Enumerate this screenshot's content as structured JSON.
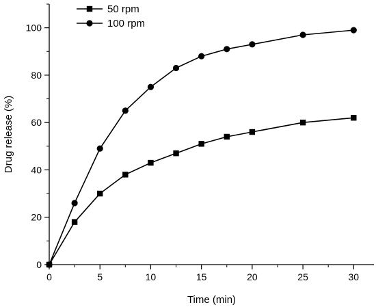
{
  "chart_data": {
    "type": "line",
    "xlabel": "Time (min)",
    "ylabel": "Drug release (%)",
    "xlim": [
      0,
      32
    ],
    "ylim": [
      0,
      110
    ],
    "xticks": [
      0,
      5,
      10,
      15,
      20,
      25,
      30
    ],
    "yticks": [
      0,
      20,
      40,
      60,
      80,
      100
    ],
    "grid": false,
    "legend_position": "top-left",
    "series": [
      {
        "name": "50 rpm",
        "marker": "square",
        "color": "#000000",
        "x": [
          0,
          2.5,
          5,
          7.5,
          10,
          12.5,
          15,
          17.5,
          20,
          25,
          30
        ],
        "y": [
          0,
          18,
          30,
          38,
          43,
          47,
          51,
          54,
          56,
          60,
          62
        ]
      },
      {
        "name": "100 rpm",
        "marker": "circle",
        "color": "#000000",
        "x": [
          0,
          2.5,
          5,
          7.5,
          10,
          12.5,
          15,
          17.5,
          20,
          25,
          30
        ],
        "y": [
          0,
          26,
          49,
          65,
          75,
          83,
          88,
          91,
          93,
          97,
          99
        ]
      }
    ]
  }
}
